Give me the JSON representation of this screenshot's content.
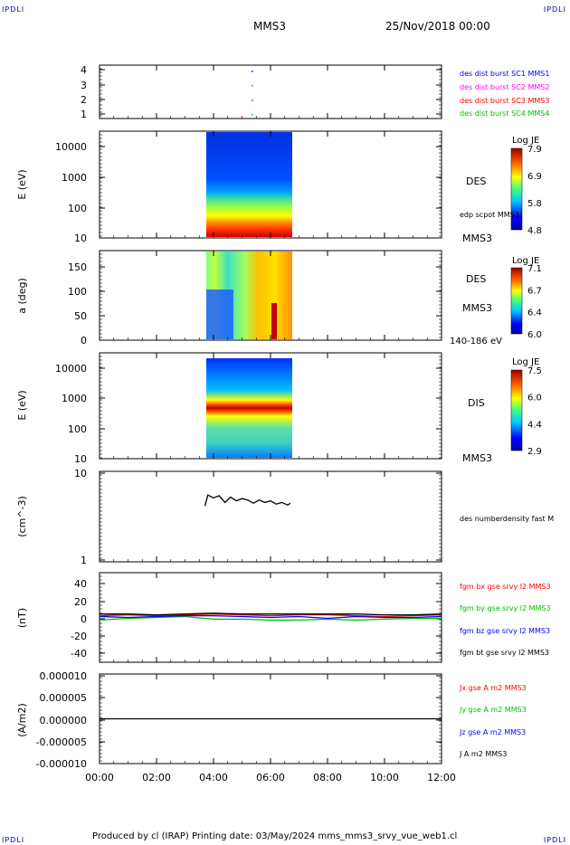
{
  "corners": {
    "tl": "IPDLI",
    "tr": "IPDLI",
    "bl": "IPDLI",
    "br": "IPDLI"
  },
  "header": {
    "title": "MMS3",
    "date": "25/Nov/2018 00:00"
  },
  "footer": {
    "text": "Produced by cl (IRAP)   Printing date: 03/May/2024   mms_mms3_srvy_vue_web1.cl"
  },
  "colors": {
    "red": "#ff0000",
    "green": "#00c000",
    "blue": "#0000ff",
    "magenta": "#ff00ff",
    "black": "#000000"
  },
  "chart_data": [
    {
      "id": "p1",
      "type": "scatter",
      "yticks": [
        "4",
        "3",
        "2",
        "1"
      ],
      "legend": [
        {
          "label": "des dist burst SC1 MMS1",
          "color": "#0000ff"
        },
        {
          "label": "des dist burst SC2 MMS2",
          "color": "#ff00ff"
        },
        {
          "label": "des dist burst SC3 MMS3",
          "color": "#ff0000"
        },
        {
          "label": "des dist burst SC4 MMS4",
          "color": "#00c000"
        }
      ]
    },
    {
      "id": "p2",
      "type": "heatmap",
      "ylabel": "E (eV)",
      "yticks": [
        "10000",
        "1000",
        "100",
        "10"
      ],
      "right_label": "DES",
      "right_label2": "edp scpot MMS3",
      "right_label3": "MMS3",
      "colorbar": {
        "title": "Log JE",
        "ticks": [
          "7.9",
          "6.9",
          "5.8",
          "4.8"
        ]
      }
    },
    {
      "id": "p3",
      "type": "heatmap",
      "ylabel": "a (deg)",
      "yticks": [
        "150",
        "100",
        "50",
        "0"
      ],
      "right_label": "DES",
      "right_label2": "MMS3",
      "right_label3": "140-186 eV",
      "colorbar": {
        "title": "Log JE",
        "ticks": [
          "7.1",
          "6.7",
          "6.4",
          "6.0"
        ]
      }
    },
    {
      "id": "p4",
      "type": "heatmap",
      "ylabel": "E (eV)",
      "yticks": [
        "10000",
        "1000",
        "100",
        "10"
      ],
      "right_label": "DIS",
      "right_label3": "MMS3",
      "colorbar": {
        "title": "Log JE",
        "ticks": [
          "7.5",
          "6.0",
          "4.4",
          "2.9"
        ]
      }
    },
    {
      "id": "p5",
      "type": "line",
      "ylabel": "(cm^-3)",
      "yticks": [
        "10",
        "1"
      ],
      "ylim": [
        1,
        10
      ],
      "log": true,
      "legend": [
        {
          "label": "des numberdensity fast M",
          "color": "#000000"
        }
      ],
      "series": [
        {
          "x_hours": [
            3.7,
            3.8,
            4.0,
            4.2,
            4.4,
            4.6,
            4.8,
            5.0,
            5.2,
            5.4,
            5.6,
            5.8,
            6.0,
            6.2,
            6.4,
            6.6,
            6.7
          ],
          "values": [
            4.2,
            5.6,
            5.2,
            5.5,
            4.6,
            5.3,
            4.8,
            5.1,
            4.9,
            4.5,
            4.9,
            4.6,
            4.8,
            4.4,
            4.6,
            4.3,
            4.5
          ]
        }
      ]
    },
    {
      "id": "p6",
      "type": "line",
      "ylabel": "(nT)",
      "yticks": [
        "40",
        "20",
        "0",
        "-20",
        "-40"
      ],
      "ylim": [
        -50,
        50
      ],
      "legend": [
        {
          "label": "fgm bx gse srvy l2 MMS3",
          "color": "#ff0000"
        },
        {
          "label": "fgm by gse srvy l2 MMS3",
          "color": "#00c000"
        },
        {
          "label": "fgm bz gse srvy l2 MMS3",
          "color": "#0000ff"
        },
        {
          "label": "fgm bt gse srvy l2 MMS3",
          "color": "#000000"
        }
      ],
      "series": [
        {
          "name": "bx",
          "color": "#ff0000",
          "x_hours": [
            0,
            1,
            2,
            3,
            4,
            5,
            6,
            7,
            8,
            9,
            10,
            11,
            12
          ],
          "values": [
            2,
            3,
            2,
            3,
            4,
            3,
            2,
            3,
            3,
            2,
            1,
            2,
            3
          ]
        },
        {
          "name": "by",
          "color": "#00c000",
          "x_hours": [
            0,
            1,
            2,
            3,
            4,
            5,
            6,
            7,
            8,
            9,
            10,
            11,
            12
          ],
          "values": [
            -3,
            -1,
            0,
            1,
            -2,
            -2,
            -3,
            -3,
            -2,
            -3,
            -2,
            -1,
            -1
          ]
        },
        {
          "name": "bz",
          "color": "#0000ff",
          "x_hours": [
            0,
            1,
            2,
            3,
            4,
            5,
            6,
            7,
            8,
            9,
            10,
            11,
            12
          ],
          "values": [
            1,
            0,
            1,
            2,
            2,
            1,
            0,
            1,
            -1,
            1,
            0,
            0,
            1
          ]
        },
        {
          "name": "bt",
          "color": "#000000",
          "x_hours": [
            0,
            1,
            2,
            3,
            4,
            5,
            6,
            7,
            8,
            9,
            10,
            11,
            12
          ],
          "values": [
            4,
            4,
            3,
            4,
            5,
            4,
            4,
            4,
            4,
            4,
            3,
            3,
            4
          ]
        }
      ]
    },
    {
      "id": "p7",
      "type": "line",
      "ylabel": "(A/m2)",
      "yticks": [
        "0.000010",
        "0.000005",
        "0.000000",
        "-0.000005",
        "-0.000010"
      ],
      "ylim": [
        -1e-05,
        1e-05
      ],
      "legend": [
        {
          "label": "Jx gse A m2 MMS3",
          "color": "#ff0000"
        },
        {
          "label": "Jy gse A m2 MMS3",
          "color": "#00c000"
        },
        {
          "label": "Jz gse A m2 MMS3",
          "color": "#0000ff"
        },
        {
          "label": "J A m2 MMS3",
          "color": "#000000"
        }
      ],
      "series": [
        {
          "name": "J",
          "color": "#000000",
          "x_hours": [
            0,
            12
          ],
          "values": [
            0,
            0
          ]
        }
      ],
      "xticks": [
        "00:00",
        "02:00",
        "04:00",
        "06:00",
        "08:00",
        "10:00",
        "12:00"
      ],
      "xlim_hours": [
        0,
        12
      ]
    }
  ]
}
